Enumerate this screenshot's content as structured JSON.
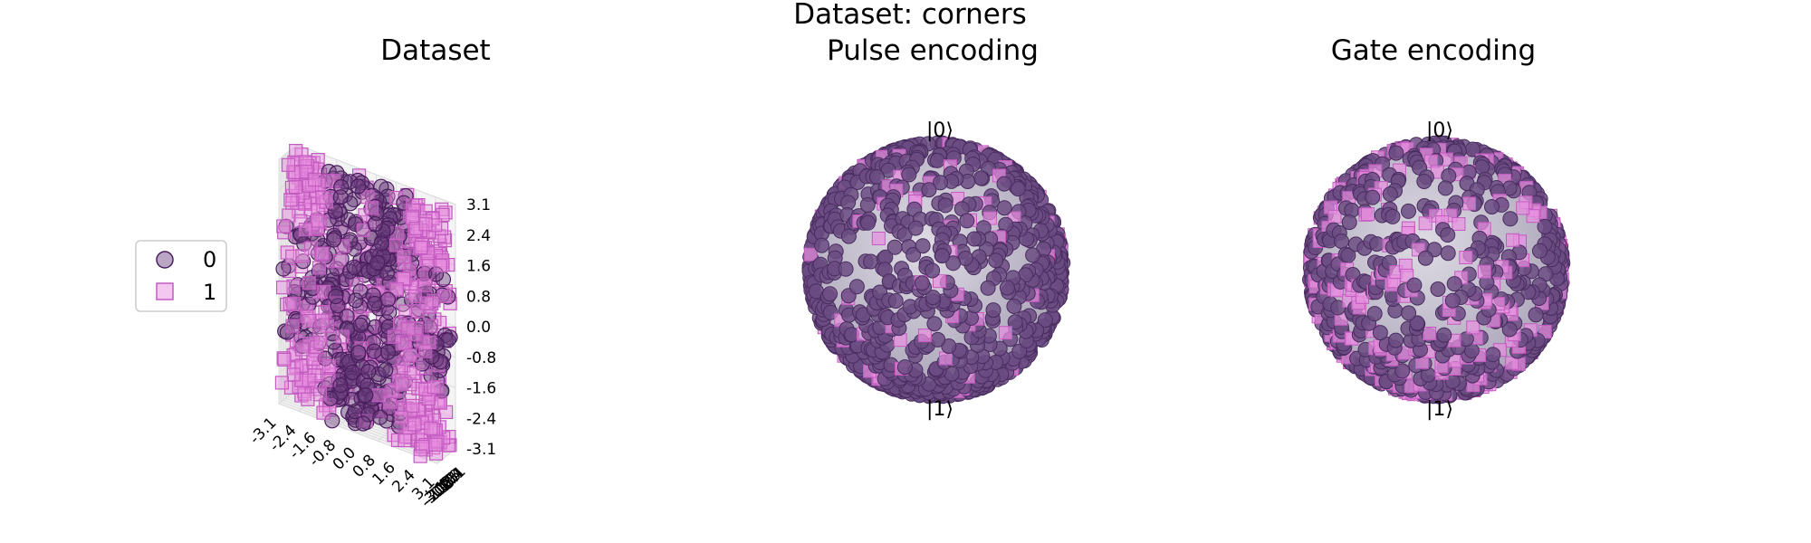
{
  "figure": {
    "suptitle": "Dataset: corners"
  },
  "legend": {
    "placement": "left",
    "entries": [
      {
        "label": "0",
        "marker": "circle",
        "color": "#5b2a6e"
      },
      {
        "label": "1",
        "marker": "square",
        "color": "#e07ad8"
      }
    ]
  },
  "colors": {
    "class0_fill": "#6a3d7d",
    "class0_edge": "#4a1d5e",
    "class1_fill": "#e88fe0",
    "class1_edge": "#c35bc0",
    "sphere": "#c9c5d3",
    "pane": "#f2f2f2",
    "grid": "#dddddd"
  },
  "chart_data": [
    {
      "type": "scatter",
      "subtype": "3d",
      "title": "Dataset",
      "xlabel": "",
      "ylabel": "",
      "zlabel": "",
      "xlim": [
        -3.1,
        3.1
      ],
      "ylim": [
        -3.1,
        3.1
      ],
      "zlim": [
        -3.1,
        3.1
      ],
      "x_ticks": [
        "-3.1",
        "-2.4",
        "-1.6",
        "-0.8",
        "0.0",
        "0.8",
        "1.6",
        "2.4",
        "3.1"
      ],
      "y_ticks": [
        "-3.1",
        "-2.4",
        "-1.6",
        "-0.8",
        "0.0",
        "0.8",
        "1.6",
        "2.4",
        "3.1"
      ],
      "z_ticks": [
        "3.1",
        "2.4",
        "1.6",
        "0.8",
        "0.0",
        "-0.8",
        "-1.6",
        "-2.4",
        "-3.1"
      ],
      "grid": true,
      "series": [
        {
          "name": "0",
          "marker": "circle"
        },
        {
          "name": "1",
          "marker": "square"
        }
      ]
    },
    {
      "type": "scatter",
      "subtype": "bloch-sphere",
      "title": "Pulse encoding",
      "labels": {
        "top": "|0⟩",
        "bottom": "|1⟩"
      },
      "series": [
        {
          "name": "0",
          "marker": "circle"
        },
        {
          "name": "1",
          "marker": "square"
        }
      ]
    },
    {
      "type": "scatter",
      "subtype": "bloch-sphere",
      "title": "Gate encoding",
      "labels": {
        "top": "|0⟩",
        "bottom": "|1⟩"
      },
      "series": [
        {
          "name": "0",
          "marker": "circle"
        },
        {
          "name": "1",
          "marker": "square"
        }
      ]
    }
  ]
}
